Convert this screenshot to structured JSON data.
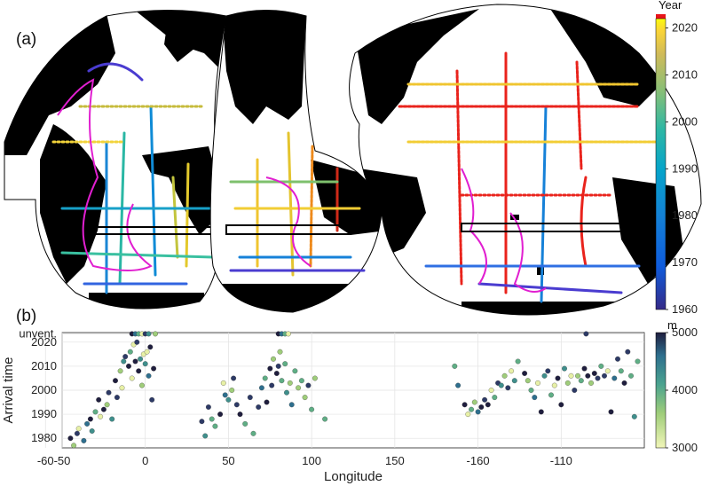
{
  "panels": {
    "a": {
      "label": "(a)"
    },
    "b": {
      "label": "(b)"
    }
  },
  "colorbar_year": {
    "title": "Year",
    "ticks": [
      "2020",
      "2010",
      "2000",
      "1990",
      "1980",
      "1970",
      "1960"
    ],
    "range": [
      1960,
      2022
    ],
    "colormap": "parula",
    "top_band_color": "#e8141b"
  },
  "colorbar_depth": {
    "title": "m",
    "ticks": [
      "5000",
      "4000",
      "3000"
    ],
    "range": [
      3000,
      5000
    ],
    "colormap": "viridis-like dark (deep) to pale yellow (shallow)"
  },
  "map": {
    "projection": "interrupted ocean-centered",
    "land_color": "#000000",
    "ocean_color": "#ffffff",
    "trajectory_color": "#e11fd0"
  },
  "chart_data": {
    "type": "scatter",
    "xlabel": "Longitude",
    "ylabel": "Arrival time",
    "x_ticks": [
      "-50",
      "0",
      "50",
      "100",
      "150",
      "-160",
      "-110",
      "-60"
    ],
    "y_ticks": [
      "unvent.",
      "2020",
      "2010",
      "2000",
      "1990",
      "1980"
    ],
    "ylim": [
      1976,
      2024
    ],
    "grid": true,
    "series": [
      {
        "values": [
          [
            -45,
            1980
          ],
          [
            -43,
            1977
          ],
          [
            -41,
            1982
          ],
          [
            -40,
            1984
          ],
          [
            -37,
            1979
          ],
          [
            -35,
            1986
          ],
          [
            -33,
            1988
          ],
          [
            -32,
            1983
          ],
          [
            -30,
            1991
          ],
          [
            -28,
            1996
          ],
          [
            -27,
            1989
          ],
          [
            -25,
            1992
          ],
          [
            -23,
            1994
          ],
          [
            -22,
            1999
          ],
          [
            -20,
            1988
          ],
          [
            -18,
            2004
          ],
          [
            -17,
            1997
          ],
          [
            -15,
            2008
          ],
          [
            -14,
            2001
          ],
          [
            -13,
            2012
          ],
          [
            -12,
            2014
          ],
          [
            -10,
            2010
          ],
          [
            -9,
            2016
          ],
          [
            -8,
            2005
          ],
          [
            -7,
            2019
          ],
          [
            -6,
            2012
          ],
          [
            -5,
            2020
          ],
          [
            -4,
            2008
          ],
          [
            -3,
            2013
          ],
          [
            -2,
            2002
          ],
          [
            -1,
            2015
          ],
          [
            0,
            2011
          ],
          [
            1,
            2016
          ],
          [
            2,
            2006
          ],
          [
            3,
            2018
          ],
          [
            4,
            1996
          ],
          [
            5,
            2009
          ],
          [
            34,
            1987
          ],
          [
            36,
            1981
          ],
          [
            38,
            1993
          ],
          [
            40,
            1988
          ],
          [
            42,
            1985
          ],
          [
            45,
            1990
          ],
          [
            47,
            2003
          ],
          [
            48,
            1998
          ],
          [
            50,
            1996
          ],
          [
            52,
            2000
          ],
          [
            53,
            2005
          ],
          [
            55,
            1994
          ],
          [
            57,
            1990
          ],
          [
            60,
            1986
          ],
          [
            63,
            1997
          ],
          [
            65,
            1982
          ],
          [
            68,
            1993
          ],
          [
            70,
            2001
          ],
          [
            72,
            2005
          ],
          [
            73,
            1995
          ],
          [
            75,
            2009
          ],
          [
            76,
            2002
          ],
          [
            77,
            2013
          ],
          [
            79,
            2007
          ],
          [
            80,
            2010
          ],
          [
            81,
            2016
          ],
          [
            82,
            2004
          ],
          [
            84,
            2011
          ],
          [
            85,
            1999
          ],
          [
            87,
            2003
          ],
          [
            88,
            1994
          ],
          [
            90,
            2008
          ],
          [
            92,
            2001
          ],
          [
            94,
            2004
          ],
          [
            96,
            1997
          ],
          [
            98,
            2002
          ],
          [
            100,
            1992
          ],
          [
            102,
            2005
          ],
          [
            108,
            1988
          ],
          [
            -174,
            2010
          ],
          [
            -172,
            2002
          ],
          [
            -168,
            1994
          ],
          [
            -166,
            1990
          ],
          [
            -164,
            1992
          ],
          [
            -162,
            1995
          ],
          [
            -160,
            1991
          ],
          [
            -158,
            1993
          ],
          [
            -156,
            1996
          ],
          [
            -154,
            1994
          ],
          [
            -152,
            2000
          ],
          [
            -150,
            1997
          ],
          [
            -148,
            2003
          ],
          [
            -146,
            2002
          ],
          [
            -144,
            2006
          ],
          [
            -142,
            2001
          ],
          [
            -140,
            2008
          ],
          [
            -138,
            2004
          ],
          [
            -136,
            2012
          ],
          [
            -132,
            2007
          ],
          [
            -130,
            2004
          ],
          [
            -128,
            2000
          ],
          [
            -126,
            1997
          ],
          [
            -124,
            2003
          ],
          [
            -122,
            1991
          ],
          [
            -120,
            2006
          ],
          [
            -118,
            2008
          ],
          [
            -116,
            1998
          ],
          [
            -114,
            2002
          ],
          [
            -112,
            2005
          ],
          [
            -110,
            1994
          ],
          [
            -108,
            2009
          ],
          [
            -106,
            2003
          ],
          [
            -104,
            2006
          ],
          [
            -102,
            2000
          ],
          [
            -100,
            2006
          ],
          [
            -98,
            2004
          ],
          [
            -96,
            2009
          ],
          [
            -94,
            2006
          ],
          [
            -92,
            2003
          ],
          [
            -90,
            2007
          ],
          [
            -88,
            2005
          ],
          [
            -86,
            2010
          ],
          [
            -84,
            2006
          ],
          [
            -82,
            2008
          ],
          [
            -80,
            1991
          ],
          [
            -78,
            2005
          ],
          [
            -76,
            2013
          ],
          [
            -74,
            2008
          ],
          [
            -72,
            2003
          ],
          [
            -70,
            2016
          ],
          [
            -68,
            2006
          ],
          [
            -66,
            1989
          ],
          [
            -64,
            2012
          ]
        ]
      }
    ],
    "unventilated_x": [
      -8,
      -6,
      -4,
      -2,
      0,
      2,
      6,
      80,
      82,
      84,
      86,
      -95
    ]
  }
}
